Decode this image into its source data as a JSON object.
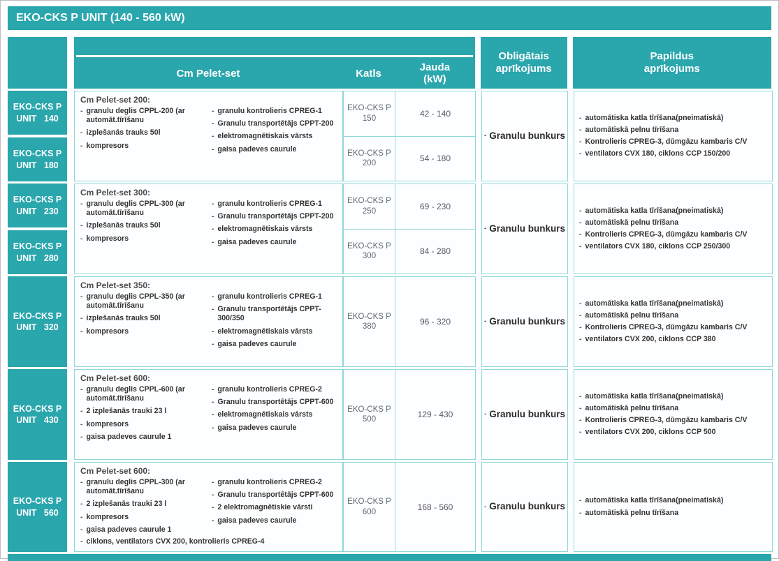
{
  "title": "EKO-CKS P UNIT (140 - 560 kW)",
  "colors": {
    "teal": "#2aa6ad",
    "cell_border": "#8fd7db"
  },
  "header": {
    "pelet": "Cm Pelet-set",
    "katls": "Katls",
    "jauda_line1": "Jauda",
    "jauda_line2": "(kW)",
    "obligatais_line1": "Obligātais",
    "obligatais_line2": "aprīkojums",
    "papildus_line1": "Papildus",
    "papildus_line2": "aprīkojums"
  },
  "rows": [
    {
      "units": [
        {
          "line1": "EKO-CKS P",
          "line2": "UNIT 140"
        },
        {
          "line1": "EKO-CKS P",
          "line2": "UNIT 180"
        }
      ],
      "pelet": {
        "title": "Cm Pelet-set 200:",
        "left": [
          "granulu deglis CPPL-200 (ar automāt.tīrīšanu",
          "izplešanās trauks 50l",
          "kompresors"
        ],
        "right": [
          "granulu kontrolieris CPREG-1",
          "Granulu transportētājs CPPT-200",
          "elektromagnētiskais vārsts",
          "gaisa padeves caurule"
        ]
      },
      "boilers": [
        {
          "katls": "EKO-CKS P 150",
          "jauda": "42 - 140"
        },
        {
          "katls": "EKO-CKS P 200",
          "jauda": "54 - 180"
        }
      ],
      "obligatais": "Granulu bunkurs",
      "papildus": [
        "automātiska katla tīrīšana(pneimatiskā)",
        "automātiskā pelnu tīrīšana",
        "Kontrolieris CPREG-3, dūmgāzu kambaris C/V",
        "ventilators CVX 180, ciklons CCP 150/200"
      ]
    },
    {
      "units": [
        {
          "line1": "EKO-CKS P",
          "line2": "UNIT 230"
        },
        {
          "line1": "EKO-CKS P",
          "line2": "UNIT 280"
        }
      ],
      "pelet": {
        "title": "Cm Pelet-set 300:",
        "left": [
          "granulu deglis CPPL-300 (ar automāt.tīrīšanu",
          "izplešanās trauks 50l",
          "kompresors"
        ],
        "right": [
          "granulu kontrolieris CPREG-1",
          "Granulu transportētājs CPPT-200",
          "elektromagnētiskais vārsts",
          "gaisa padeves caurule"
        ]
      },
      "boilers": [
        {
          "katls": "EKO-CKS P 250",
          "jauda": "69 - 230"
        },
        {
          "katls": "EKO-CKS P 300",
          "jauda": "84 - 280"
        }
      ],
      "obligatais": "Granulu bunkurs",
      "papildus": [
        "automātiska katla tīrīšana(pneimatiskā)",
        "automātiskā pelnu tīrīšana",
        "Kontrolieris CPREG-3, dūmgāzu kambaris C/V",
        "ventilators CVX 180, ciklons CCP 250/300"
      ]
    },
    {
      "units": [
        {
          "line1": "EKO-CKS P",
          "line2": "UNIT 320"
        }
      ],
      "pelet": {
        "title": "Cm Pelet-set 350:",
        "left": [
          "granulu deglis CPPL-350 (ar automāt.tīrīšanu",
          "izplešanās trauks 50l",
          "kompresors"
        ],
        "right": [
          "granulu kontrolieris CPREG-1",
          "Granulu transportētājs CPPT-300/350",
          "elektromagnētiskais vārsts",
          "gaisa padeves caurule"
        ]
      },
      "boilers": [
        {
          "katls": "EKO-CKS P 380",
          "jauda": "96 - 320"
        }
      ],
      "obligatais": "Granulu bunkurs",
      "papildus": [
        "automātiska katla tīrīšana(pneimatiskā)",
        "automātiskā pelnu tīrīšana",
        "Kontrolieris CPREG-3, dūmgāzu kambaris C/V",
        "ventilators CVX 200, ciklons CCP 380"
      ]
    },
    {
      "units": [
        {
          "line1": "EKO-CKS P",
          "line2": "UNIT 430"
        }
      ],
      "pelet": {
        "title": "Cm Pelet-set 600:",
        "left": [
          "granulu deglis CPPL-600 (ar automāt.tīrīšanu",
          "2 izplešanās trauki 23 l",
          "kompresors",
          "gaisa padeves caurule 1"
        ],
        "right": [
          "granulu kontrolieris CPREG-2",
          "Granulu transportētājs CPPT-600",
          "elektromagnētiskais vārsts",
          "gaisa padeves caurule"
        ]
      },
      "boilers": [
        {
          "katls": "EKO-CKS P 500",
          "jauda": "129 - 430"
        }
      ],
      "obligatais": "Granulu bunkurs",
      "papildus": [
        "automātiska katla tīrīšana(pneimatiskā)",
        "automātiskā pelnu tīrīšana",
        "Kontrolieris CPREG-3, dūmgāzu kambaris C/V",
        "ventilators CVX 200, ciklons CCP 500"
      ]
    },
    {
      "units": [
        {
          "line1": "EKO-CKS P",
          "line2": "UNIT 560"
        }
      ],
      "pelet": {
        "title": "Cm Pelet-set 600:",
        "left": [
          "granulu deglis CPPL-300 (ar automāt.tīrīšanu",
          "2 izplešanās trauki 23 l",
          "kompresors",
          "gaisa padeves caurule 1"
        ],
        "right": [
          "granulu kontrolieris CPREG-2",
          "Granulu transportētājs CPPT-600",
          "2 elektromagnētiskie vārsti",
          "gaisa padeves caurule"
        ],
        "bottom": [
          "ciklons, ventilators CVX 200, kontrolieris CPREG-4"
        ]
      },
      "boilers": [
        {
          "katls": "EKO-CKS P 600",
          "jauda": "168 - 560"
        }
      ],
      "obligatais": "Granulu bunkurs",
      "papildus": [
        "automātiska katla tīrīšana(pneimatiskā)",
        "automātiskā pelnu tīrīšana"
      ]
    }
  ]
}
